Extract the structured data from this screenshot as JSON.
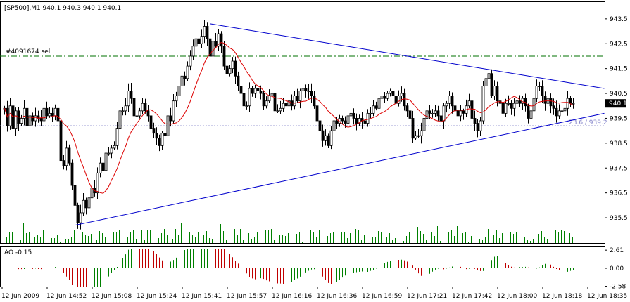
{
  "chart_data": {
    "type": "candlestick",
    "title": "[SP500],M1  940.1 940.3 940.1 940.1",
    "symbol": "[SP500]",
    "timeframe": "M1",
    "ohlc_header": "940.1 940.3 940.1 940.1",
    "price_label": "940.1",
    "order_line": {
      "label": "#4091674 sell",
      "price": 942.0,
      "color": "#007000"
    },
    "bid_line": {
      "price": 939.2,
      "label": "23.6 / 939.2",
      "color": "#8080c8"
    },
    "y_ticks": [
      "943.5",
      "942.5",
      "941.5",
      "940.5",
      "939.5",
      "938.5",
      "937.5",
      "936.5",
      "935.5"
    ],
    "ylim": [
      935.05,
      943.75
    ],
    "x_ticks": [
      "12 Jun 2009",
      "12 Jun 14:52",
      "12 Jun 15:08",
      "12 Jun 15:24",
      "12 Jun 15:41",
      "12 Jun 15:57",
      "12 Jun 16:16",
      "12 Jun 16:36",
      "12 Jun 16:59",
      "12 Jun 17:21",
      "12 Jun 17:42",
      "12 Jun 18:00",
      "12 Jun 18:18",
      "12 Jun 18:35"
    ],
    "close": [
      939.9,
      939.2,
      940.0,
      939.1,
      939.8,
      939.3,
      939.5,
      939.9,
      939.2,
      939.6,
      939.4,
      939.6,
      939.5,
      939.4,
      939.9,
      939.6,
      939.7,
      939.6,
      939.9,
      939.4,
      937.8,
      937.6,
      938.3,
      937.7,
      936.8,
      936.0,
      935.3,
      935.7,
      936.2,
      935.9,
      936.3,
      936.7,
      936.5,
      937.3,
      937.7,
      937.4,
      938.1,
      938.1,
      938.3,
      938.4,
      939.1,
      939.8,
      939.8,
      940.0,
      940.6,
      940.3,
      939.6,
      939.6,
      939.8,
      940.1,
      939.8,
      939.6,
      939.1,
      938.9,
      938.7,
      938.4,
      938.9,
      938.8,
      939.6,
      939.4,
      940.2,
      940.4,
      940.8,
      941.2,
      941.1,
      941.6,
      942.0,
      942.4,
      942.7,
      942.5,
      942.8,
      943.2,
      942.7,
      942.0,
      942.6,
      942.4,
      942.9,
      942.4,
      941.6,
      941.3,
      941.5,
      941.8,
      941.2,
      940.8,
      940.5,
      940.0,
      940.0,
      940.7,
      940.5,
      940.7,
      940.6,
      940.5,
      940.0,
      940.2,
      940.4,
      940.5,
      939.8,
      939.8,
      939.9,
      940.1,
      940.0,
      940.2,
      940.0,
      940.4,
      940.2,
      940.6,
      940.7,
      940.6,
      940.6,
      940.4,
      940.0,
      939.4,
      939.0,
      938.6,
      938.8,
      938.4,
      939.0,
      939.4,
      939.3,
      939.5,
      939.4,
      939.3,
      939.6,
      939.7,
      939.5,
      939.3,
      939.5,
      939.4,
      939.3,
      939.7,
      939.7,
      940.0,
      939.9,
      940.3,
      940.4,
      940.3,
      940.5,
      940.6,
      940.4,
      940.1,
      940.4,
      940.5,
      940.0,
      939.8,
      939.5,
      938.7,
      938.8,
      938.8,
      939.0,
      939.5,
      939.8,
      939.7,
      939.7,
      939.8,
      939.6,
      939.4,
      940.0,
      940.1,
      940.4,
      940.0,
      939.8,
      939.6,
      939.8,
      939.7,
      940.0,
      940.2,
      939.5,
      939.3,
      939.0,
      939.4,
      940.8,
      941.1,
      941.3,
      940.4,
      940.8,
      940.2,
      940.1,
      939.7,
      940.1,
      940.1,
      939.9,
      940.1,
      940.2,
      940.1,
      940.3,
      940.0,
      939.5,
      939.8,
      940.3,
      940.8,
      940.8,
      940.4,
      940.1,
      940.3,
      940.0,
      939.9,
      939.6,
      939.8,
      939.8,
      939.9,
      940.3,
      940.1,
      940.1
    ],
    "ma_color": "#dd0000",
    "trendlines": [
      {
        "from": {
          "index": 73,
          "price": 943.3
        },
        "to": {
          "index": 213,
          "price": 940.7
        }
      },
      {
        "from": {
          "index": 25,
          "price": 935.2
        },
        "to": {
          "index": 213,
          "price": 939.7
        }
      }
    ],
    "volume_label": "",
    "indicator": {
      "label": "AO -0.15",
      "y_ticks": [
        "2.61",
        "0.00",
        "-2.58"
      ],
      "ylim": [
        -2.85,
        3.0
      ],
      "up_color": "#008000",
      "down_color": "#c00000"
    }
  }
}
